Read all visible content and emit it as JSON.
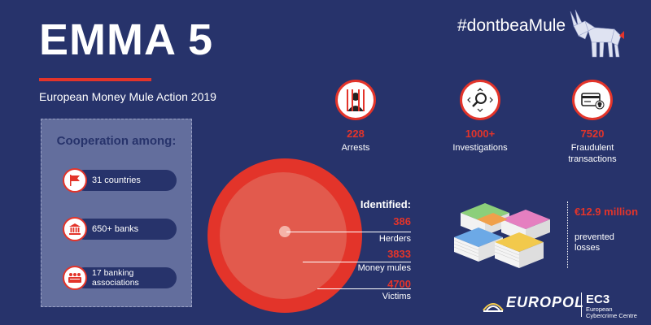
{
  "header": {
    "title": "EMMA 5",
    "subtitle": "European Money Mule Action 2019",
    "hashtag": "#dontbeaMule"
  },
  "cooperation": {
    "title": "Cooperation among:",
    "items": [
      {
        "label": "31 countries",
        "icon": "flag-icon"
      },
      {
        "label": "650+ banks",
        "icon": "bank-icon"
      },
      {
        "label": "17 banking associations",
        "icon": "association-icon"
      }
    ]
  },
  "stats": [
    {
      "value": "228",
      "label": "Arrests",
      "icon": "prisoner-icon"
    },
    {
      "value": "1000+",
      "label": "Investigations",
      "icon": "magnifier-icon"
    },
    {
      "value": "7520",
      "label": "Fraudulent transactions",
      "icon": "card-fraud-icon"
    }
  ],
  "identified": {
    "label": "Identified:",
    "items": [
      {
        "value": "386",
        "label": "Herders"
      },
      {
        "value": "3833",
        "label": "Money mules"
      },
      {
        "value": "4700",
        "label": "Victims"
      }
    ]
  },
  "losses": {
    "value": "€12.9 million",
    "label": "prevented losses"
  },
  "logo": {
    "name": "EUROPOL",
    "unit": "EC3",
    "unit_full": "European Cybercrime Centre"
  },
  "colors": {
    "background": "#27336b",
    "accent": "#e3342a"
  }
}
